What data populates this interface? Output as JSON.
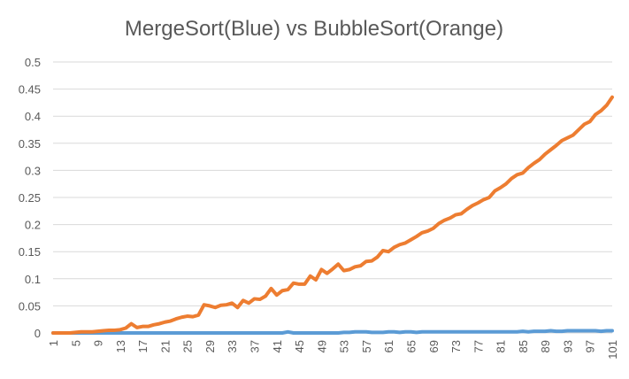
{
  "chart_data": {
    "type": "line",
    "title": "MergeSort(Blue) vs BubbleSort(Orange)",
    "xlabel": "",
    "ylabel": "",
    "ylim": [
      0,
      0.5
    ],
    "yticks": [
      "0",
      "0.05",
      "0.1",
      "0.15",
      "0.2",
      "0.25",
      "0.3",
      "0.35",
      "0.4",
      "0.45",
      "0.5"
    ],
    "x_tick_labels": [
      "1",
      "5",
      "9",
      "13",
      "17",
      "21",
      "25",
      "29",
      "33",
      "37",
      "41",
      "45",
      "49",
      "53",
      "57",
      "61",
      "65",
      "69",
      "73",
      "77",
      "81",
      "85",
      "89",
      "93",
      "97",
      "101"
    ],
    "grid": true,
    "legend": "none",
    "colors": {
      "blue": "#5b9bd5",
      "orange": "#ed7d31"
    },
    "x": [
      1,
      2,
      3,
      4,
      5,
      6,
      7,
      8,
      9,
      10,
      11,
      12,
      13,
      14,
      15,
      16,
      17,
      18,
      19,
      20,
      21,
      22,
      23,
      24,
      25,
      26,
      27,
      28,
      29,
      30,
      31,
      32,
      33,
      34,
      35,
      36,
      37,
      38,
      39,
      40,
      41,
      42,
      43,
      44,
      45,
      46,
      47,
      48,
      49,
      50,
      51,
      52,
      53,
      54,
      55,
      56,
      57,
      58,
      59,
      60,
      61,
      62,
      63,
      64,
      65,
      66,
      67,
      68,
      69,
      70,
      71,
      72,
      73,
      74,
      75,
      76,
      77,
      78,
      79,
      80,
      81,
      82,
      83,
      84,
      85,
      86,
      87,
      88,
      89,
      90,
      91,
      92,
      93,
      94,
      95,
      96,
      97,
      98,
      99,
      100,
      101
    ],
    "series": [
      {
        "color": "#5b9bd5",
        "values": [
          0,
          0,
          0,
          0,
          0,
          0,
          0,
          0,
          0,
          0,
          0,
          0,
          0,
          0,
          0,
          0,
          0,
          0,
          0,
          0,
          0,
          0,
          0,
          0,
          0,
          0,
          0,
          0,
          0,
          0,
          0,
          0,
          0,
          0,
          0,
          0,
          0,
          0,
          0,
          0,
          0,
          0,
          0.002,
          0,
          0,
          0,
          0,
          0,
          0,
          0,
          0,
          0,
          0.001,
          0.001,
          0.002,
          0.002,
          0.002,
          0.001,
          0.001,
          0.001,
          0.002,
          0.002,
          0.001,
          0.002,
          0.002,
          0.001,
          0.002,
          0.002,
          0.002,
          0.002,
          0.002,
          0.002,
          0.002,
          0.002,
          0.002,
          0.002,
          0.002,
          0.002,
          0.002,
          0.002,
          0.002,
          0.002,
          0.002,
          0.002,
          0.003,
          0.002,
          0.003,
          0.003,
          0.003,
          0.004,
          0.003,
          0.003,
          0.004,
          0.004,
          0.004,
          0.004,
          0.004,
          0.004,
          0.003,
          0.004,
          0.004
        ]
      },
      {
        "color": "#ed7d31",
        "values": [
          0,
          0,
          0,
          0,
          0.001,
          0.002,
          0.002,
          0.002,
          0.003,
          0.004,
          0.005,
          0.005,
          0.006,
          0.009,
          0.017,
          0.01,
          0.012,
          0.012,
          0.015,
          0.017,
          0.02,
          0.022,
          0.026,
          0.029,
          0.031,
          0.03,
          0.033,
          0.052,
          0.05,
          0.047,
          0.051,
          0.052,
          0.055,
          0.047,
          0.06,
          0.055,
          0.063,
          0.062,
          0.068,
          0.082,
          0.07,
          0.078,
          0.08,
          0.092,
          0.09,
          0.09,
          0.105,
          0.098,
          0.117,
          0.11,
          0.118,
          0.127,
          0.115,
          0.117,
          0.122,
          0.124,
          0.132,
          0.133,
          0.14,
          0.152,
          0.15,
          0.158,
          0.163,
          0.166,
          0.172,
          0.178,
          0.185,
          0.188,
          0.193,
          0.202,
          0.208,
          0.212,
          0.218,
          0.22,
          0.228,
          0.235,
          0.24,
          0.246,
          0.25,
          0.262,
          0.268,
          0.275,
          0.285,
          0.292,
          0.295,
          0.305,
          0.313,
          0.32,
          0.33,
          0.338,
          0.346,
          0.355,
          0.36,
          0.365,
          0.375,
          0.385,
          0.39,
          0.403,
          0.41,
          0.42,
          0.435
        ]
      }
    ]
  }
}
